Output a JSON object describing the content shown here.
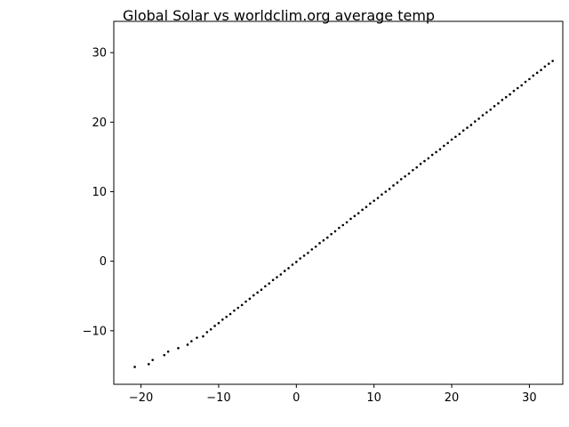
{
  "chart_data": {
    "type": "scatter",
    "title": "Global Solar vs worldclim.org average temp",
    "xlabel": "",
    "ylabel": "",
    "xlim": [
      -23.5,
      34.3
    ],
    "ylim": [
      -17.7,
      34.5
    ],
    "x_ticks": [
      -20,
      -10,
      0,
      10,
      20,
      30
    ],
    "y_ticks": [
      -10,
      0,
      10,
      20,
      30
    ],
    "x_tick_labels": [
      "−20",
      "−10",
      "0",
      "10",
      "20",
      "30"
    ],
    "y_tick_labels": [
      "−10",
      "0",
      "10",
      "20",
      "30"
    ],
    "grid": false,
    "marker_color": "#000000",
    "series": [
      {
        "x": [
          -20.8,
          -19,
          -18.5,
          -17,
          -16.5,
          -15.2,
          -14,
          -13.5,
          -12.8,
          -12,
          -11.5,
          -11,
          -10.5,
          -10,
          -9.5,
          -9,
          -8.5,
          -8,
          -7.5,
          -7,
          -6.5,
          -6,
          -5.5,
          -5,
          -4.5,
          -4,
          -3.5,
          -3,
          -2.5,
          -2,
          -1.5,
          -1,
          -0.5,
          0,
          0.5,
          1,
          1.5,
          2,
          2.5,
          3,
          3.5,
          4,
          4.5,
          5,
          5.5,
          6,
          6.5,
          7,
          7.5,
          8,
          8.5,
          9,
          9.5,
          10,
          10.5,
          11,
          11.5,
          12,
          12.5,
          13,
          13.5,
          14,
          14.5,
          15,
          15.5,
          16,
          16.5,
          17,
          17.5,
          18,
          18.5,
          19,
          19.5,
          20,
          20.5,
          21,
          21.5,
          22,
          22.5,
          23,
          23.5,
          24,
          24.5,
          25,
          25.5,
          26,
          26.5,
          27,
          27.5,
          28,
          28.5,
          29,
          29.5,
          30,
          30.5,
          31,
          31.5,
          32,
          32.5,
          33
        ],
        "y": [
          -15.2,
          -14.8,
          -14.2,
          -13.5,
          -13,
          -12.5,
          -12,
          -11.5,
          -11,
          -10.8,
          -10.2,
          -9.8,
          -9.3,
          -8.9,
          -8.4,
          -8,
          -7.6,
          -7.1,
          -6.7,
          -6.3,
          -5.8,
          -5.4,
          -4.9,
          -4.5,
          -4.1,
          -3.6,
          -3.2,
          -2.7,
          -2.3,
          -1.9,
          -1.4,
          -1,
          -0.5,
          -0.1,
          0.4,
          0.8,
          1.2,
          1.7,
          2.1,
          2.6,
          3,
          3.4,
          3.9,
          4.3,
          4.8,
          5.2,
          5.6,
          6.1,
          6.5,
          6.9,
          7.4,
          7.8,
          8.3,
          8.7,
          9.1,
          9.6,
          10,
          10.4,
          10.9,
          11.3,
          11.8,
          12.2,
          12.6,
          13.1,
          13.5,
          14,
          14.4,
          14.8,
          15.3,
          15.7,
          16.1,
          16.6,
          17,
          17.5,
          17.9,
          18.3,
          18.8,
          19.2,
          19.6,
          20.1,
          20.5,
          21,
          21.4,
          21.8,
          22.3,
          22.7,
          23.2,
          23.6,
          24,
          24.5,
          24.9,
          25.3,
          25.8,
          26.2,
          26.7,
          27.1,
          27.5,
          28,
          28.4,
          28.8
        ]
      }
    ]
  }
}
